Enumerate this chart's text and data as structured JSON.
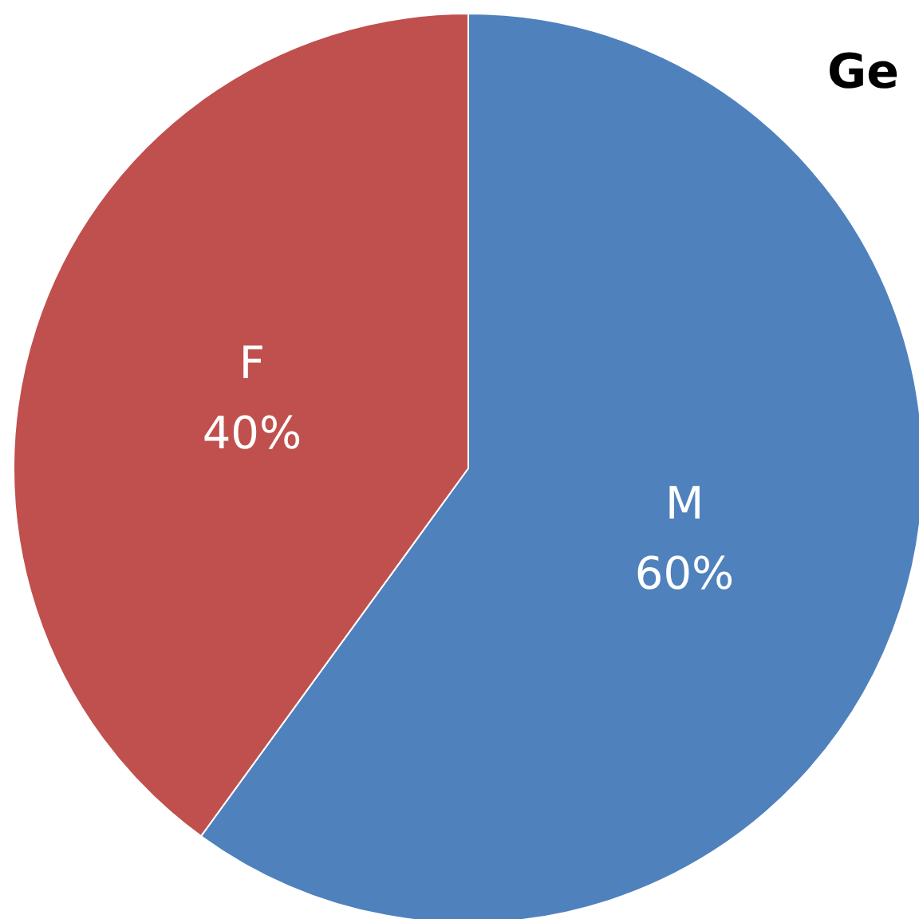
{
  "chart_data": {
    "type": "pie",
    "title": "Ge",
    "categories": [
      "M",
      "F"
    ],
    "values": [
      60,
      40
    ],
    "colors": [
      "#4f81bd",
      "#c0504d"
    ],
    "value_labels": [
      "60%",
      "40%"
    ]
  }
}
